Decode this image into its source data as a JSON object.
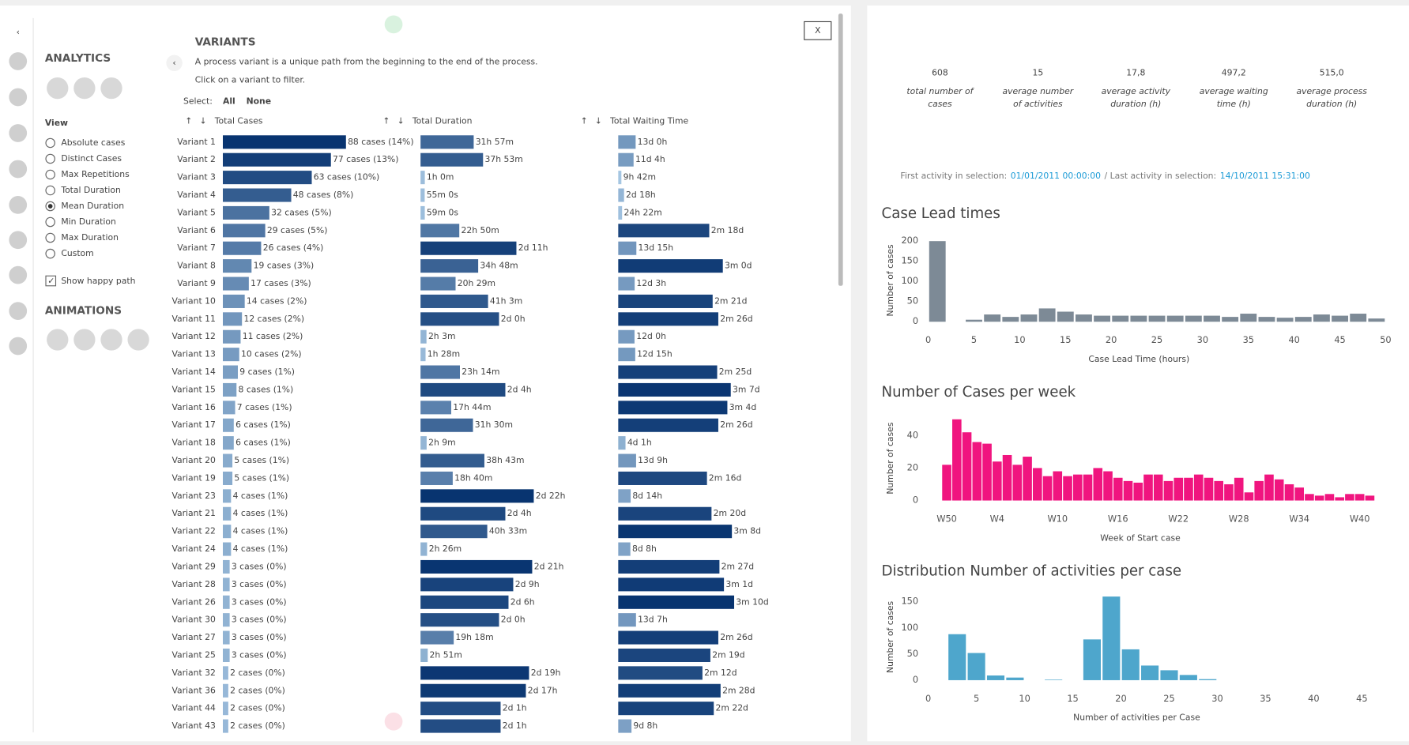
{
  "sidebar": {
    "analytics": "ANALYTICS",
    "view_title": "View",
    "view_options": [
      "Absolute cases",
      "Distinct Cases",
      "Max Repetitions",
      "Total Duration",
      "Mean Duration",
      "Min Duration",
      "Max Duration",
      "Custom"
    ],
    "view_selected": 4,
    "happy_path": {
      "label": "Show happy path",
      "checked": true
    },
    "animations": "ANIMATIONS"
  },
  "variants": {
    "title": "VARIANTS",
    "description": "A process variant is a unique path from the beginning to the end of the process.",
    "hint": "Click on a variant to filter.",
    "select_label": "Select:",
    "select_all": "All",
    "select_none": "None",
    "close": "X",
    "columns": [
      "Total Cases",
      "Total Duration",
      "Total Waiting Time"
    ],
    "rows": [
      {
        "name": "Variant 1",
        "cases": 88,
        "cases_label": "88 cases (14%)",
        "duration": 31.95,
        "duration_label": "31h 57m",
        "waiting": 312,
        "waiting_label": "13d 0h"
      },
      {
        "name": "Variant 2",
        "cases": 77,
        "cases_label": "77 cases (13%)",
        "duration": 37.88,
        "duration_label": "37h 53m",
        "waiting": 268,
        "waiting_label": "11d 4h"
      },
      {
        "name": "Variant 3",
        "cases": 63,
        "cases_label": "63 cases (10%)",
        "duration": 1,
        "duration_label": "1h 0m",
        "waiting": 9.7,
        "waiting_label": "9h 42m"
      },
      {
        "name": "Variant 4",
        "cases": 48,
        "cases_label": "48 cases (8%)",
        "duration": 0.92,
        "duration_label": "55m 0s",
        "waiting": 66,
        "waiting_label": "2d 18h"
      },
      {
        "name": "Variant 5",
        "cases": 32,
        "cases_label": "32 cases (5%)",
        "duration": 0.98,
        "duration_label": "59m 0s",
        "waiting": 24.37,
        "waiting_label": "24h 22m"
      },
      {
        "name": "Variant 6",
        "cases": 29,
        "cases_label": "29 cases (5%)",
        "duration": 22.83,
        "duration_label": "22h 50m",
        "waiting": 1872,
        "waiting_label": "2m 18d"
      },
      {
        "name": "Variant 7",
        "cases": 26,
        "cases_label": "26 cases (4%)",
        "duration": 59,
        "duration_label": "2d 11h",
        "waiting": 327,
        "waiting_label": "13d 15h"
      },
      {
        "name": "Variant 8",
        "cases": 19,
        "cases_label": "19 cases (3%)",
        "duration": 34.8,
        "duration_label": "34h 48m",
        "waiting": 2160,
        "waiting_label": "3m 0d"
      },
      {
        "name": "Variant 9",
        "cases": 17,
        "cases_label": "17 cases (3%)",
        "duration": 20.48,
        "duration_label": "20h 29m",
        "waiting": 291,
        "waiting_label": "12d 3h"
      },
      {
        "name": "Variant 10",
        "cases": 14,
        "cases_label": "14 cases (2%)",
        "duration": 41.05,
        "duration_label": "41h 3m",
        "waiting": 1944,
        "waiting_label": "2m 21d"
      },
      {
        "name": "Variant 11",
        "cases": 12,
        "cases_label": "12 cases (2%)",
        "duration": 48,
        "duration_label": "2d 0h",
        "waiting": 2064,
        "waiting_label": "2m 26d"
      },
      {
        "name": "Variant 12",
        "cases": 11,
        "cases_label": "11 cases (2%)",
        "duration": 2.05,
        "duration_label": "2h 3m",
        "waiting": 288,
        "waiting_label": "12d 0h"
      },
      {
        "name": "Variant 13",
        "cases": 10,
        "cases_label": "10 cases (2%)",
        "duration": 1.47,
        "duration_label": "1h 28m",
        "waiting": 303,
        "waiting_label": "12d 15h"
      },
      {
        "name": "Variant 14",
        "cases": 9,
        "cases_label": "9 cases (1%)",
        "duration": 23.23,
        "duration_label": "23h 14m",
        "waiting": 2040,
        "waiting_label": "2m 25d"
      },
      {
        "name": "Variant 15",
        "cases": 8,
        "cases_label": "8 cases (1%)",
        "duration": 52,
        "duration_label": "2d 4h",
        "waiting": 2328,
        "waiting_label": "3m 7d"
      },
      {
        "name": "Variant 16",
        "cases": 7,
        "cases_label": "7 cases (1%)",
        "duration": 17.73,
        "duration_label": "17h 44m",
        "waiting": 2256,
        "waiting_label": "3m 4d"
      },
      {
        "name": "Variant 17",
        "cases": 6,
        "cases_label": "6 cases (1%)",
        "duration": 31.5,
        "duration_label": "31h 30m",
        "waiting": 2064,
        "waiting_label": "2m 26d"
      },
      {
        "name": "Variant 18",
        "cases": 6,
        "cases_label": "6 cases (1%)",
        "duration": 2.15,
        "duration_label": "2h 9m",
        "waiting": 97,
        "waiting_label": "4d 1h"
      },
      {
        "name": "Variant 20",
        "cases": 5,
        "cases_label": "5 cases (1%)",
        "duration": 38.72,
        "duration_label": "38h 43m",
        "waiting": 321,
        "waiting_label": "13d 9h"
      },
      {
        "name": "Variant 19",
        "cases": 5,
        "cases_label": "5 cases (1%)",
        "duration": 18.67,
        "duration_label": "18h 40m",
        "waiting": 1824,
        "waiting_label": "2m 16d"
      },
      {
        "name": "Variant 23",
        "cases": 4,
        "cases_label": "4 cases (1%)",
        "duration": 70,
        "duration_label": "2d 22h",
        "waiting": 206,
        "waiting_label": "8d 14h"
      },
      {
        "name": "Variant 21",
        "cases": 4,
        "cases_label": "4 cases (1%)",
        "duration": 52,
        "duration_label": "2d 4h",
        "waiting": 1920,
        "waiting_label": "2m 20d"
      },
      {
        "name": "Variant 22",
        "cases": 4,
        "cases_label": "4 cases (1%)",
        "duration": 40.55,
        "duration_label": "40h 33m",
        "waiting": 2352,
        "waiting_label": "3m 8d"
      },
      {
        "name": "Variant 24",
        "cases": 4,
        "cases_label": "4 cases (1%)",
        "duration": 2.43,
        "duration_label": "2h 26m",
        "waiting": 200,
        "waiting_label": "8d 8h"
      },
      {
        "name": "Variant 29",
        "cases": 3,
        "cases_label": "3 cases (0%)",
        "duration": 69,
        "duration_label": "2d 21h",
        "waiting": 2088,
        "waiting_label": "2m 27d"
      },
      {
        "name": "Variant 28",
        "cases": 3,
        "cases_label": "3 cases (0%)",
        "duration": 57,
        "duration_label": "2d 9h",
        "waiting": 2184,
        "waiting_label": "3m 1d"
      },
      {
        "name": "Variant 26",
        "cases": 3,
        "cases_label": "3 cases (0%)",
        "duration": 54,
        "duration_label": "2d 6h",
        "waiting": 2400,
        "waiting_label": "3m 10d"
      },
      {
        "name": "Variant 30",
        "cases": 3,
        "cases_label": "3 cases (0%)",
        "duration": 48,
        "duration_label": "2d 0h",
        "waiting": 319,
        "waiting_label": "13d 7h"
      },
      {
        "name": "Variant 27",
        "cases": 3,
        "cases_label": "3 cases (0%)",
        "duration": 19.3,
        "duration_label": "19h 18m",
        "waiting": 2064,
        "waiting_label": "2m 26d"
      },
      {
        "name": "Variant 25",
        "cases": 3,
        "cases_label": "3 cases (0%)",
        "duration": 2.85,
        "duration_label": "2h 51m",
        "waiting": 1896,
        "waiting_label": "2m 19d"
      },
      {
        "name": "Variant 32",
        "cases": 2,
        "cases_label": "2 cases (0%)",
        "duration": 67,
        "duration_label": "2d 19h",
        "waiting": 1728,
        "waiting_label": "2m 12d"
      },
      {
        "name": "Variant 36",
        "cases": 2,
        "cases_label": "2 cases (0%)",
        "duration": 65,
        "duration_label": "2d 17h",
        "waiting": 2112,
        "waiting_label": "2m 28d"
      },
      {
        "name": "Variant 44",
        "cases": 2,
        "cases_label": "2 cases (0%)",
        "duration": 49,
        "duration_label": "2d 1h",
        "waiting": 1968,
        "waiting_label": "2m 22d"
      },
      {
        "name": "Variant 43",
        "cases": 2,
        "cases_label": "2 cases (0%)",
        "duration": 49,
        "duration_label": "2d 1h",
        "waiting": 224,
        "waiting_label": "9d 8h"
      }
    ]
  },
  "kpis": [
    {
      "value": "608",
      "label": [
        "total number of",
        "cases"
      ],
      "color": "#e0137a"
    },
    {
      "value": "15",
      "label": [
        "average number",
        "of activities"
      ],
      "color": "#4a9fc4"
    },
    {
      "value": "17,8",
      "label": [
        "average activity",
        "duration (h)"
      ],
      "color": "#6b7b8b"
    },
    {
      "value": "497,2",
      "label": [
        "average waiting",
        "time (h)"
      ],
      "color": "#6b7b8b"
    },
    {
      "value": "515,0",
      "label": [
        "average process",
        "duration (h)"
      ],
      "color": "#6b7b8b"
    }
  ],
  "info": {
    "first_label": "First activity in selection:",
    "first_value": "01/01/2011 00:00:00",
    "last_label": "/ Last activity in selection:",
    "last_value": "14/10/2011 15:31:00"
  },
  "chart_data": [
    {
      "type": "histogram",
      "title": "Case Lead times",
      "x_label": "Case Lead Time (hours)",
      "y_label": "Number of cases",
      "color": "#7d8a96",
      "bins": [
        0,
        2,
        4,
        6,
        8,
        10,
        12,
        14,
        16,
        18,
        20,
        22,
        24,
        26,
        28,
        30,
        32,
        34,
        36,
        38,
        40,
        42,
        44,
        46,
        48,
        50
      ],
      "counts": [
        200,
        0,
        5,
        18,
        12,
        18,
        33,
        25,
        18,
        15,
        15,
        15,
        15,
        15,
        15,
        15,
        12,
        20,
        12,
        10,
        12,
        18,
        15,
        20,
        8
      ],
      "xlim": [
        0,
        50
      ],
      "xticks": [
        0,
        5,
        10,
        15,
        20,
        25,
        30,
        35,
        40,
        45,
        50
      ],
      "ylim": [
        0,
        205
      ],
      "yticks": [
        0,
        50,
        100,
        150,
        200
      ]
    },
    {
      "type": "bar",
      "title": "Number of Cases per week",
      "x_label": "Week of Start case",
      "y_label": "Number of cases",
      "color": "#f0157f",
      "categories": [
        "W50",
        null,
        null,
        null,
        null,
        "W4",
        null,
        null,
        null,
        null,
        null,
        "W10",
        null,
        null,
        null,
        null,
        null,
        "W16",
        null,
        null,
        null,
        null,
        null,
        "W22",
        null,
        null,
        null,
        null,
        null,
        "W28",
        null,
        null,
        null,
        null,
        null,
        "W34",
        null,
        null,
        null,
        null,
        null,
        "W40",
        null
      ],
      "values": [
        22,
        50,
        42,
        36,
        35,
        24,
        28,
        22,
        27,
        20,
        15,
        18,
        15,
        16,
        16,
        20,
        18,
        14,
        12,
        11,
        16,
        16,
        12,
        14,
        14,
        16,
        14,
        12,
        10,
        14,
        5,
        12,
        16,
        13,
        10,
        8,
        4,
        3,
        4,
        2,
        4,
        4,
        3
      ],
      "ylim": [
        0,
        52
      ],
      "yticks": [
        0,
        20,
        40
      ]
    },
    {
      "type": "histogram",
      "title": "Distribution Number of activities per case",
      "x_label": "Number of activities per Case",
      "y_label": "Number of cases",
      "color": "#4ea6cc",
      "bins": [
        0,
        2,
        4,
        6,
        8,
        10,
        12,
        14,
        16,
        18,
        20,
        22,
        24,
        26,
        28,
        30,
        32
      ],
      "counts": [
        0,
        88,
        52,
        9,
        5,
        0,
        1,
        0,
        78,
        160,
        59,
        28,
        19,
        10,
        2,
        0
      ],
      "xlim": [
        0,
        47
      ],
      "xticks": [
        0,
        5,
        10,
        15,
        20,
        25,
        30,
        35,
        40,
        45
      ],
      "ylim": [
        0,
        165
      ],
      "yticks": [
        0,
        50,
        100,
        150
      ]
    }
  ]
}
